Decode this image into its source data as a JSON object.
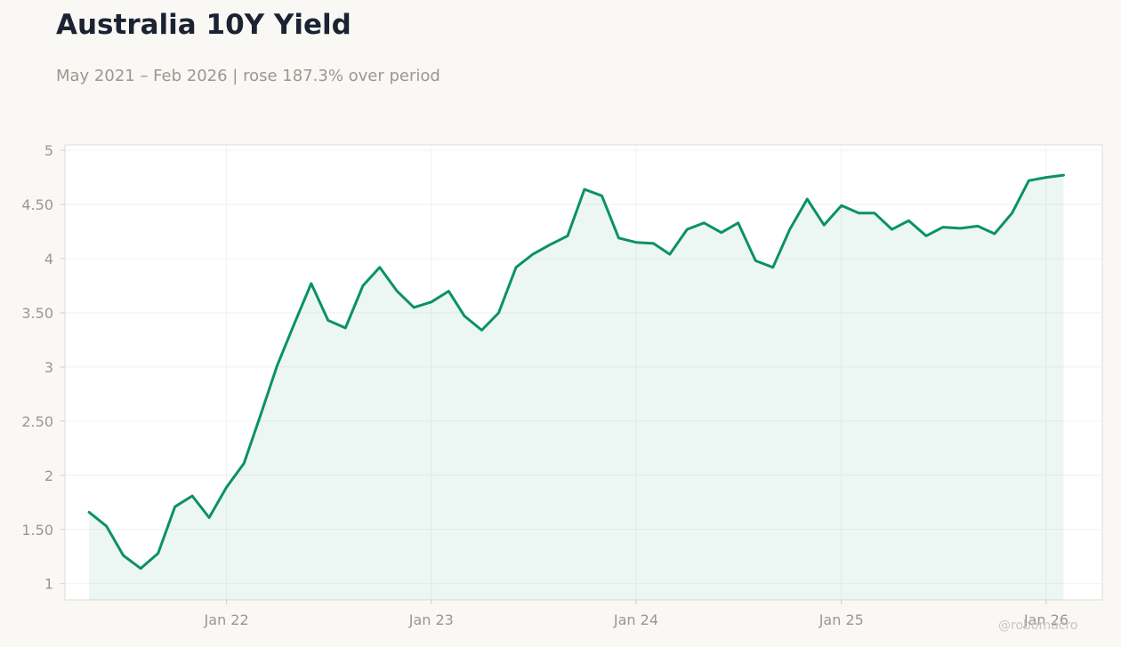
{
  "title": "Australia 10Y Yield",
  "subtitle": "May 2021 – Feb 2026 | rose 187.3% over period",
  "watermark": "@robomacro",
  "colors": {
    "line": "#0a9264",
    "fill": "#0a9264",
    "background": "#f9f8f4",
    "plot_background": "#ffffff",
    "grid": "#eeeeee",
    "title": "#1b2333",
    "muted": "#999790"
  },
  "chart_data": {
    "type": "area",
    "title": "Australia 10Y Yield",
    "xlabel": "",
    "ylabel": "",
    "grid": true,
    "legend": "none",
    "ylim": [
      0.85,
      5.05
    ],
    "xlim": [
      "2021-03-19",
      "2026-04-11"
    ],
    "yticks": [
      1,
      1.5,
      2,
      2.5,
      3,
      3.5,
      4,
      4.5,
      5
    ],
    "ytick_labels": [
      "1",
      "1.50",
      "2",
      "2.50",
      "3",
      "3.50",
      "4",
      "4.50",
      "5"
    ],
    "xticks": [
      "2022-01-01",
      "2023-01-01",
      "2024-01-01",
      "2025-01-01",
      "2026-01-01"
    ],
    "xtick_labels": [
      "Jan 22",
      "Jan 23",
      "Jan 24",
      "Jan 25",
      "Jan 26"
    ],
    "x": [
      "2021-05-01",
      "2021-06-01",
      "2021-07-01",
      "2021-08-01",
      "2021-09-01",
      "2021-10-01",
      "2021-11-01",
      "2021-12-01",
      "2022-01-01",
      "2022-02-01",
      "2022-03-01",
      "2022-04-01",
      "2022-05-01",
      "2022-06-01",
      "2022-07-01",
      "2022-08-01",
      "2022-09-01",
      "2022-10-01",
      "2022-11-01",
      "2022-12-01",
      "2023-01-01",
      "2023-02-01",
      "2023-03-01",
      "2023-04-01",
      "2023-05-01",
      "2023-06-01",
      "2023-07-01",
      "2023-08-01",
      "2023-09-01",
      "2023-10-01",
      "2023-11-01",
      "2023-12-01",
      "2024-01-01",
      "2024-02-01",
      "2024-03-01",
      "2024-04-01",
      "2024-05-01",
      "2024-06-01",
      "2024-07-01",
      "2024-08-01",
      "2024-09-01",
      "2024-10-01",
      "2024-11-01",
      "2024-12-01",
      "2025-01-01",
      "2025-02-01",
      "2025-03-01",
      "2025-04-01",
      "2025-05-01",
      "2025-06-01",
      "2025-07-01",
      "2025-08-01",
      "2025-09-01",
      "2025-10-01",
      "2025-11-01",
      "2025-12-01",
      "2026-01-01",
      "2026-02-01"
    ],
    "series": [
      {
        "values": [
          1.66,
          1.53,
          1.26,
          1.14,
          1.28,
          1.71,
          1.81,
          1.61,
          1.89,
          2.11,
          2.53,
          3.01,
          3.39,
          3.77,
          3.43,
          3.36,
          3.75,
          3.92,
          3.7,
          3.55,
          3.6,
          3.7,
          3.47,
          3.34,
          3.5,
          3.92,
          4.04,
          4.13,
          4.21,
          4.64,
          4.58,
          4.19,
          4.15,
          4.14,
          4.04,
          4.27,
          4.33,
          4.24,
          4.33,
          3.98,
          3.92,
          4.27,
          4.55,
          4.31,
          4.49,
          4.42,
          4.42,
          4.27,
          4.35,
          4.21,
          4.29,
          4.28,
          4.3,
          4.23,
          4.42,
          4.72,
          4.75,
          4.77
        ]
      }
    ]
  }
}
